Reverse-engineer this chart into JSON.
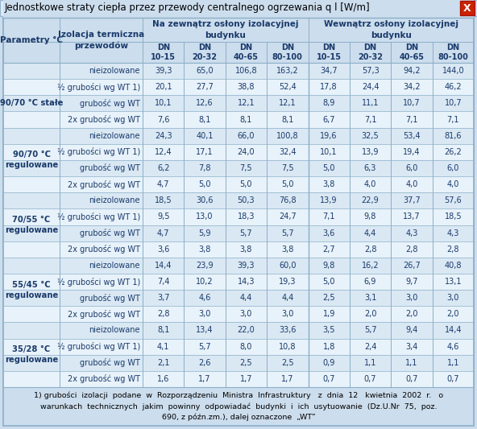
{
  "title": "Jednostkowe straty ciepła przez przewody centralnego ogrzewania q l [W/m]",
  "dn_labels": [
    "DN\n10-15",
    "DN\n20-32",
    "DN\n40-65",
    "DN\n80-100",
    "DN\n10-15",
    "DN\n20-32",
    "DN\n40-65",
    "DN\n80-100"
  ],
  "col1_label": "Parametry °C",
  "col2_label": "Izolacja termiczna\nprzewodów",
  "header_left": "Na zewnątrz osłony izolacyjnej\nbudynku",
  "header_right": "Wewnątrz osłony izolacyjnej\nbudynku",
  "row_groups": [
    {
      "group_label": "",
      "rows": [
        {
          "label": "nieizolowane",
          "values": [
            39.3,
            65.0,
            106.8,
            163.2,
            34.7,
            57.3,
            94.2,
            144.0
          ]
        }
      ]
    },
    {
      "group_label": "90/70 °C stałe",
      "rows": [
        {
          "label": "½ grubości wg WT 1)",
          "values": [
            20.1,
            27.7,
            38.8,
            52.4,
            17.8,
            24.4,
            34.2,
            46.2
          ]
        },
        {
          "label": "grubość wg WT",
          "values": [
            10.1,
            12.6,
            12.1,
            12.1,
            8.9,
            11.1,
            10.7,
            10.7
          ]
        },
        {
          "label": "2x grubość wg WT",
          "values": [
            7.6,
            8.1,
            8.1,
            8.1,
            6.7,
            7.1,
            7.1,
            7.1
          ]
        }
      ]
    },
    {
      "group_label": "90/70 °C\nregulowane",
      "rows": [
        {
          "label": "nieizolowane",
          "values": [
            24.3,
            40.1,
            66.0,
            100.8,
            19.6,
            32.5,
            53.4,
            81.6
          ]
        },
        {
          "label": "½ grubości wg WT 1)",
          "values": [
            12.4,
            17.1,
            24.0,
            32.4,
            10.1,
            13.9,
            19.4,
            26.2
          ]
        },
        {
          "label": "grubość wg WT",
          "values": [
            6.2,
            7.8,
            7.5,
            7.5,
            5.0,
            6.3,
            6.0,
            6.0
          ]
        },
        {
          "label": "2x grubość wg WT",
          "values": [
            4.7,
            5.0,
            5.0,
            5.0,
            3.8,
            4.0,
            4.0,
            4.0
          ]
        }
      ]
    },
    {
      "group_label": "70/55 °C\nregulowane",
      "rows": [
        {
          "label": "nieizolowane",
          "values": [
            18.5,
            30.6,
            50.3,
            76.8,
            13.9,
            22.9,
            37.7,
            57.6
          ]
        },
        {
          "label": "½ grubości wg WT 1)",
          "values": [
            9.5,
            13.0,
            18.3,
            24.7,
            7.1,
            9.8,
            13.7,
            18.5
          ]
        },
        {
          "label": "grubość wg WT",
          "values": [
            4.7,
            5.9,
            5.7,
            5.7,
            3.6,
            4.4,
            4.3,
            4.3
          ]
        },
        {
          "label": "2x grubość wg WT",
          "values": [
            3.6,
            3.8,
            3.8,
            3.8,
            2.7,
            2.8,
            2.8,
            2.8
          ]
        }
      ]
    },
    {
      "group_label": "55/45 °C\nregulowane",
      "rows": [
        {
          "label": "nieizolowane",
          "values": [
            14.4,
            23.9,
            39.3,
            60.0,
            9.8,
            16.2,
            26.7,
            40.8
          ]
        },
        {
          "label": "½ grubości wg WT 1)",
          "values": [
            7.4,
            10.2,
            14.3,
            19.3,
            5.0,
            6.9,
            9.7,
            13.1
          ]
        },
        {
          "label": "grubość wg WT",
          "values": [
            3.7,
            4.6,
            4.4,
            4.4,
            2.5,
            3.1,
            3.0,
            3.0
          ]
        },
        {
          "label": "2x grubość wg WT",
          "values": [
            2.8,
            3.0,
            3.0,
            3.0,
            1.9,
            2.0,
            2.0,
            2.0
          ]
        }
      ]
    },
    {
      "group_label": "35/28 °C\nregulowane",
      "rows": [
        {
          "label": "nieizolowane",
          "values": [
            8.1,
            13.4,
            22.0,
            33.6,
            3.5,
            5.7,
            9.4,
            14.4
          ]
        },
        {
          "label": "½ grubości wg WT 1)",
          "values": [
            4.1,
            5.7,
            8.0,
            10.8,
            1.8,
            2.4,
            3.4,
            4.6
          ]
        },
        {
          "label": "grubość wg WT",
          "values": [
            2.1,
            2.6,
            2.5,
            2.5,
            0.9,
            1.1,
            1.1,
            1.1
          ]
        },
        {
          "label": "2x grubość wg WT",
          "values": [
            1.6,
            1.7,
            1.7,
            1.7,
            0.7,
            0.7,
            0.7,
            0.7
          ]
        }
      ]
    }
  ],
  "footnote_line1": "1) grubości  izolacji  podane  w  Rozporządzeniu  Ministra  Infrastruktury   z  dnia  12   kwietnia  2002  r.   o",
  "footnote_line2": "warunkach  technicznych  jakim  powinny  odpowiadać  budynki  i  ich  usytuowanie  (Dz.U.Nr  75,  poz.",
  "footnote_line3": "690, z późn.zm.), dalej oznaczone  „WT”",
  "bg_color": "#ccdded",
  "title_bg": "#ddeeff",
  "row_bg_even": "#dae8f4",
  "row_bg_odd": "#e8f2fa",
  "line_color": "#8aafc8",
  "text_color": "#1a3a6a",
  "title_color": "#000000",
  "x_btn_color": "#cc2200"
}
